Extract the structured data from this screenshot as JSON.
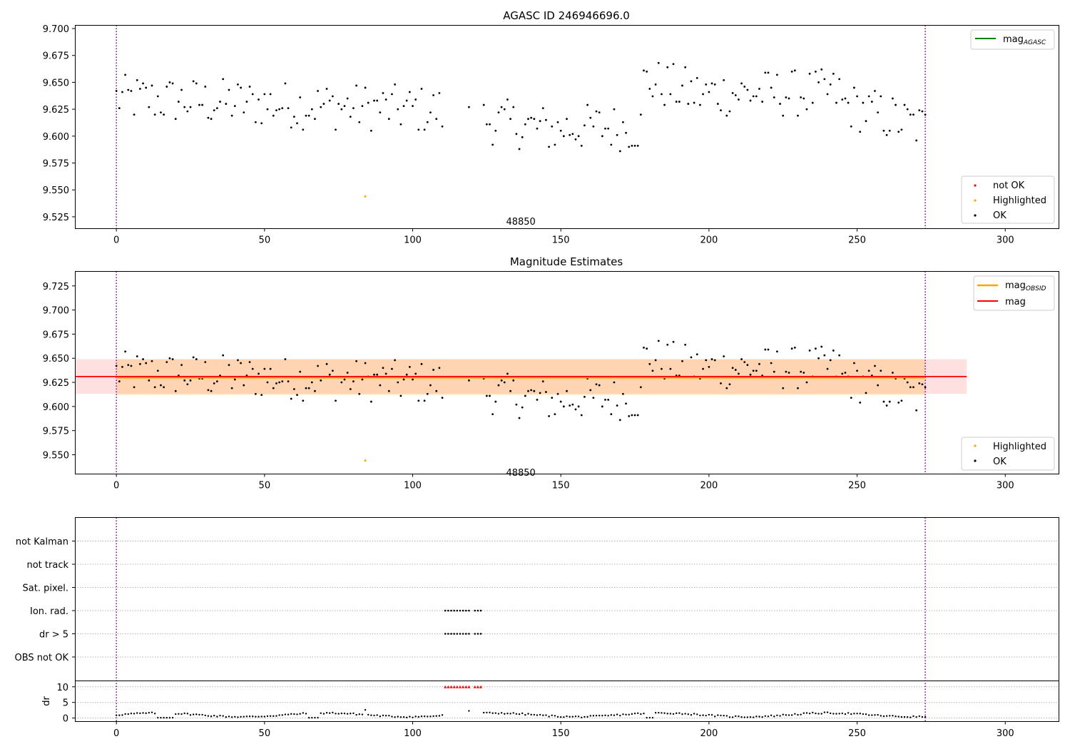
{
  "chart_data": [
    {
      "type": "scatter",
      "title": "AGASC ID 246946696.0",
      "xlim": [
        -14,
        318
      ],
      "ylim": [
        9.514,
        9.703
      ],
      "xticks": [
        0,
        50,
        100,
        150,
        200,
        250,
        300
      ],
      "yticks": [
        9.525,
        9.55,
        9.575,
        9.6,
        9.625,
        9.65,
        9.675,
        9.7
      ],
      "vlines": [
        0,
        273
      ],
      "annotation": {
        "text": "48850",
        "x": 136.5,
        "y": 9.521
      },
      "grid": false,
      "legend_upper": {
        "position": "upper-right",
        "entries": [
          "mag",
          "AGASC"
        ]
      },
      "legend_lower": {
        "position": "lower-right",
        "entries": [
          "not OK",
          "Highlighted",
          "OK"
        ]
      },
      "highlighted_points": [
        {
          "x": 84,
          "y": 9.544
        }
      ]
    },
    {
      "type": "scatter",
      "title": "Magnitude Estimates",
      "xlim": [
        -14,
        318
      ],
      "ylim": [
        9.53,
        9.74
      ],
      "xticks": [
        0,
        50,
        100,
        150,
        200,
        250,
        300
      ],
      "yticks": [
        9.55,
        9.575,
        9.6,
        9.625,
        9.65,
        9.675,
        9.7,
        9.725
      ],
      "vlines": [
        0,
        273
      ],
      "annotation": {
        "text": "48850",
        "x": 136.5,
        "y": 9.532
      },
      "grid": false,
      "mag_obsid": 9.63,
      "mag": 9.631,
      "band_obsid": [
        9.612,
        9.649
      ],
      "band_mag": [
        9.613,
        9.649
      ],
      "band_x": [
        -14,
        287
      ],
      "legend_upper": {
        "position": "upper-right",
        "entries": [
          "mag",
          "OBSID",
          "mag"
        ]
      },
      "legend_lower": {
        "position": "lower-right",
        "entries": [
          "Highlighted",
          "OK"
        ]
      },
      "highlighted_points": [
        {
          "x": 84,
          "y": 9.544
        }
      ]
    },
    {
      "type": "scatter",
      "xlim": [
        -14,
        318
      ],
      "flag_categories": [
        "not Kalman",
        "not track",
        "Sat. pixel.",
        "Ion. rad.",
        "dr > 5",
        "OBS not OK"
      ],
      "flagged_x": [
        111,
        112,
        113,
        114,
        115,
        116,
        117,
        118,
        119,
        121,
        122,
        123
      ],
      "dr_ylabel": "dr",
      "dr_yticks": [
        0,
        5,
        10
      ],
      "dr_ylim": [
        -1,
        12
      ],
      "xticks": [
        0,
        50,
        100,
        150,
        200,
        250,
        300
      ],
      "vlines": [
        0,
        273
      ],
      "grid": true
    }
  ]
}
